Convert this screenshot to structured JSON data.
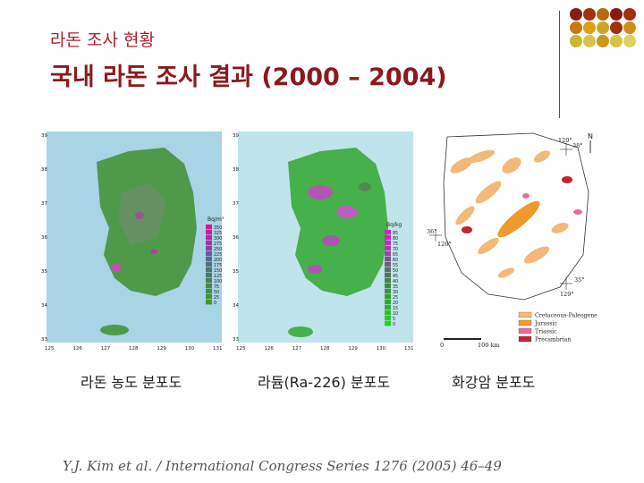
{
  "slide": {
    "subtitle": "라돈 조사 현황",
    "title": "국내 라돈 조사 결과 (2000 – 2004)",
    "citation": "Y.J. Kim et al. / International Congress Series 1276 (2005) 46–49"
  },
  "maps": [
    {
      "caption": "라돈 농도 분포도",
      "lat_ticks": [
        "39",
        "38",
        "37",
        "36",
        "35",
        "34",
        "33"
      ],
      "lon_ticks": [
        "125",
        "126",
        "127",
        "128",
        "129",
        "130",
        "131"
      ],
      "legend_title": "Bq/m³",
      "legend_values": [
        "350",
        "325",
        "300",
        "275",
        "250",
        "225",
        "200",
        "175",
        "150",
        "125",
        "100",
        "75",
        "50",
        "25",
        "0"
      ]
    },
    {
      "caption": "라듐(Ra-226) 분포도",
      "lat_ticks": [
        "39",
        "38",
        "37",
        "36",
        "35",
        "34",
        "33"
      ],
      "lon_ticks": [
        "125",
        "126",
        "127",
        "128",
        "129",
        "130",
        "131"
      ],
      "legend_title": "Bq/kg",
      "legend_values": [
        "85",
        "80",
        "75",
        "70",
        "65",
        "60",
        "55",
        "50",
        "45",
        "40",
        "35",
        "30",
        "25",
        "20",
        "15",
        "10",
        "5",
        "0"
      ]
    },
    {
      "caption": "화강암 분포도",
      "scale_text": "100 km",
      "scale_zero": "0",
      "lon_label_top": "129°",
      "lat_label_top": "38°",
      "lon_label_left": "126°",
      "lat_label_left": "36°",
      "lon_label_bottom": "129°",
      "lat_label_bottom": "35°",
      "north": "N",
      "legend": [
        "Cretaceous-Paleogene",
        "Jurassic",
        "Triassic",
        "Precambrian"
      ],
      "legend_colors": [
        "#f2b978",
        "#f09a2c",
        "#e86ca0",
        "#c0262d"
      ]
    }
  ],
  "decor_colors": [
    "#8b1a13",
    "#a0310f",
    "#b86a12",
    "#8b1a13",
    "#a0310f",
    "#c77a0e",
    "#d9a414",
    "#c8a828",
    "#a0310f",
    "#d09018",
    "#cfb42c",
    "#d8c44c",
    "#c99a12",
    "#d6c244",
    "#dcd060"
  ]
}
